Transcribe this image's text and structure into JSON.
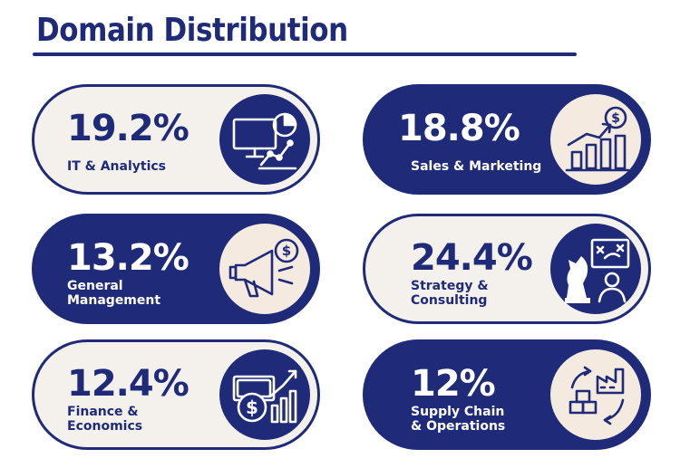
{
  "title": "Domain Distribution",
  "cards": [
    {
      "percent": "19.2%",
      "label_lines": [
        "IT & Analytics"
      ],
      "icon": "computer-analytics-icon",
      "style": "light"
    },
    {
      "percent": "18.8%",
      "label_lines": [
        "Sales & Marketing"
      ],
      "icon": "growth-chart-dollar-icon",
      "style": "dark"
    },
    {
      "percent": "13.2%",
      "label_lines": [
        "General",
        "Management"
      ],
      "icon": "megaphone-dollar-icon",
      "style": "dark"
    },
    {
      "percent": "24.4%",
      "label_lines": [
        "Strategy &",
        "Consulting"
      ],
      "icon": "chess-strategy-icon",
      "style": "light"
    },
    {
      "percent": "12.4%",
      "label_lines": [
        "Finance &",
        "Economics"
      ],
      "icon": "finance-cash-chart-icon",
      "style": "light"
    },
    {
      "percent": "12%",
      "label_lines": [
        "Supply Chain",
        "& Operations"
      ],
      "icon": "supply-chain-factory-icon",
      "style": "dark"
    }
  ],
  "colors": {
    "navy": "#1f2a78",
    "cream": "#f4f1ec",
    "peach": "#f4eadf"
  }
}
